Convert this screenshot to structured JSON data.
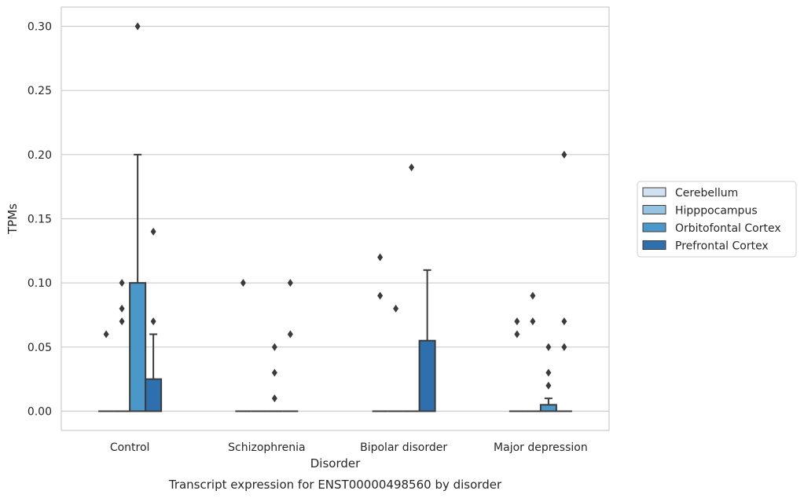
{
  "chart_data": {
    "type": "box",
    "caption": "Transcript expression for ENST00000498560 by disorder",
    "xlabel": "Disorder",
    "ylabel": "TPMs",
    "ylim": [
      -0.015,
      0.315
    ],
    "yticks": [
      "0.00",
      "0.05",
      "0.10",
      "0.15",
      "0.20",
      "0.25",
      "0.30"
    ],
    "grid": true,
    "legend_position": "right",
    "categories": [
      "Control",
      "Schizophrenia",
      "Bipolar disorder",
      "Major depression"
    ],
    "series": [
      {
        "name": "Cerebellum",
        "color": "#d0e1f2",
        "boxes": [
          {
            "category": "Control",
            "q1": 0,
            "median": 0,
            "q3": 0,
            "whislo": 0,
            "whishi": 0,
            "fliers": [
              0.06
            ]
          },
          {
            "category": "Schizophrenia",
            "q1": 0,
            "median": 0,
            "q3": 0,
            "whislo": 0,
            "whishi": 0,
            "fliers": [
              0.1
            ]
          },
          {
            "category": "Bipolar disorder",
            "q1": 0,
            "median": 0,
            "q3": 0,
            "whislo": 0,
            "whishi": 0,
            "fliers": [
              0.12,
              0.09
            ]
          },
          {
            "category": "Major depression",
            "q1": 0,
            "median": 0,
            "q3": 0,
            "whislo": 0,
            "whishi": 0,
            "fliers": [
              0.07,
              0.06
            ]
          }
        ]
      },
      {
        "name": "Hipppocampus",
        "color": "#94c4df",
        "boxes": [
          {
            "category": "Control",
            "q1": 0,
            "median": 0,
            "q3": 0,
            "whislo": 0,
            "whishi": 0,
            "fliers": [
              0.1,
              0.08,
              0.07
            ]
          },
          {
            "category": "Schizophrenia",
            "q1": 0,
            "median": 0,
            "q3": 0,
            "whislo": 0,
            "whishi": 0,
            "fliers": []
          },
          {
            "category": "Bipolar disorder",
            "q1": 0,
            "median": 0,
            "q3": 0,
            "whislo": 0,
            "whishi": 0,
            "fliers": [
              0.08
            ]
          },
          {
            "category": "Major depression",
            "q1": 0,
            "median": 0,
            "q3": 0,
            "whislo": 0,
            "whishi": 0,
            "fliers": [
              0.09,
              0.07
            ]
          }
        ]
      },
      {
        "name": "Orbitofontal Cortex",
        "color": "#4a98c9",
        "boxes": [
          {
            "category": "Control",
            "q1": 0,
            "median": 0,
            "q3": 0.1,
            "whislo": 0,
            "whishi": 0.2,
            "fliers": [
              0.3
            ]
          },
          {
            "category": "Schizophrenia",
            "q1": 0,
            "median": 0,
            "q3": 0,
            "whislo": 0,
            "whishi": 0,
            "fliers": [
              0.05,
              0.03,
              0.01
            ]
          },
          {
            "category": "Bipolar disorder",
            "q1": 0,
            "median": 0,
            "q3": 0,
            "whislo": 0,
            "whishi": 0,
            "fliers": [
              0.19
            ]
          },
          {
            "category": "Major depression",
            "q1": 0,
            "median": 0,
            "q3": 0.005,
            "whislo": 0,
            "whishi": 0.01,
            "fliers": [
              0.05,
              0.03,
              0.02
            ]
          }
        ]
      },
      {
        "name": "Prefrontal Cortex",
        "color": "#2e6fae",
        "boxes": [
          {
            "category": "Control",
            "q1": 0,
            "median": 0,
            "q3": 0.025,
            "whislo": 0,
            "whishi": 0.06,
            "fliers": [
              0.14,
              0.07
            ]
          },
          {
            "category": "Schizophrenia",
            "q1": 0,
            "median": 0,
            "q3": 0,
            "whislo": 0,
            "whishi": 0,
            "fliers": [
              0.1,
              0.06
            ]
          },
          {
            "category": "Bipolar disorder",
            "q1": 0,
            "median": 0,
            "q3": 0.055,
            "whislo": 0,
            "whishi": 0.11,
            "fliers": []
          },
          {
            "category": "Major depression",
            "q1": 0,
            "median": 0,
            "q3": 0,
            "whislo": 0,
            "whishi": 0,
            "fliers": [
              0.2,
              0.07,
              0.05
            ]
          }
        ]
      }
    ]
  }
}
